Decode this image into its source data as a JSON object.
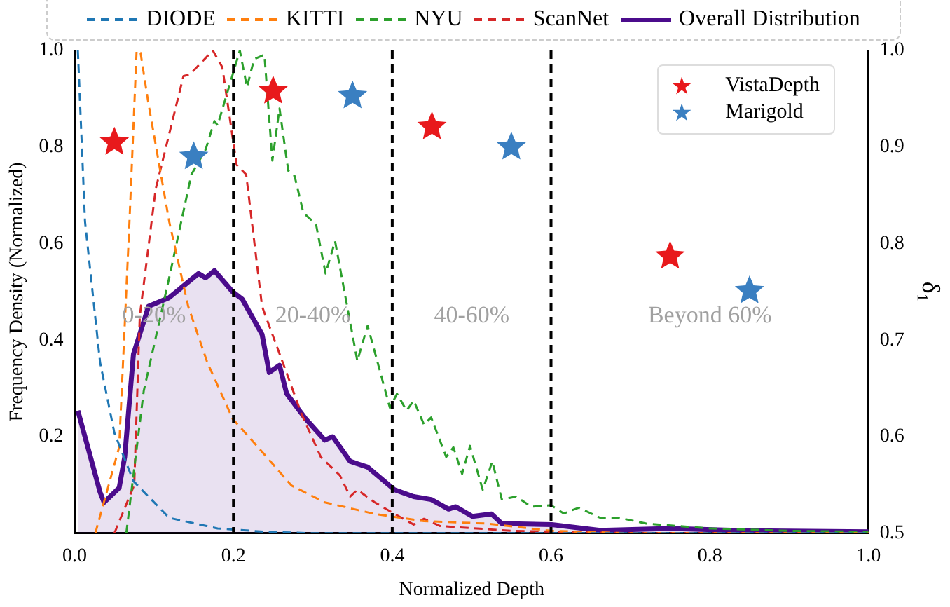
{
  "chart_data": {
    "type": "line",
    "xlabel": "Normalized Depth",
    "ylabel": "Frequency Density (Normalized)",
    "y2label": "δ₁",
    "xlim": [
      0,
      1
    ],
    "xticks": [
      {
        "value": 0,
        "label": "0.0"
      },
      {
        "value": 0.2,
        "label": "0.2"
      },
      {
        "value": 0.4,
        "label": "0.4"
      },
      {
        "value": 0.6,
        "label": "0.6"
      },
      {
        "value": 0.8,
        "label": "0.8"
      },
      {
        "value": 1,
        "label": "1.0"
      }
    ],
    "ylim": [
      0,
      1
    ],
    "yticks": [
      {
        "value": 0.2,
        "label": "0.2"
      },
      {
        "value": 0.4,
        "label": "0.4"
      },
      {
        "value": 0.6,
        "label": "0.6"
      },
      {
        "value": 0.8,
        "label": "0.8"
      },
      {
        "value": 1,
        "label": "1.0"
      }
    ],
    "y2lim": [
      0.5,
      1
    ],
    "y2ticks": [
      {
        "value": 0.5,
        "label": "0.5"
      },
      {
        "value": 0.6,
        "label": "0.6"
      },
      {
        "value": 0.7,
        "label": "0.7"
      },
      {
        "value": 0.8,
        "label": "0.8"
      },
      {
        "value": 0.9,
        "label": "0.9"
      },
      {
        "value": 1,
        "label": "1.0"
      }
    ],
    "legend": "top",
    "grid": false,
    "ref_lines": [
      {
        "axis": "x",
        "value": 0.2,
        "color": "#000000",
        "line_style": "dashed"
      },
      {
        "axis": "x",
        "value": 0.4,
        "color": "#000000",
        "line_style": "dashed"
      },
      {
        "axis": "x",
        "value": 0.6,
        "color": "#000000",
        "line_style": "dashed"
      }
    ],
    "annotations": [
      "0-20%",
      "20-40%",
      "40-60%",
      "Beyond 60%"
    ],
    "series": [
      {
        "name": "DIODE",
        "type": "line",
        "line_style": "dashed",
        "color": "#1f77b4",
        "x": [
          0.004,
          0.013,
          0.032,
          0.05,
          0.074,
          0.119,
          0.18,
          0.24,
          0.3,
          0.4,
          0.6,
          0.8,
          1.0
        ],
        "values": [
          1.0,
          0.646,
          0.354,
          0.208,
          0.108,
          0.032,
          0.01,
          0.003,
          0,
          0,
          0,
          0,
          0
        ]
      },
      {
        "name": "KITTI",
        "type": "line",
        "line_style": "dashed",
        "color": "#ff7f0e",
        "x": [
          0.026,
          0.056,
          0.069,
          0.078,
          0.083,
          0.093,
          0.119,
          0.143,
          0.167,
          0.199,
          0.23,
          0.273,
          0.315,
          0.378,
          0.44,
          0.52,
          0.6,
          0.7,
          0.85,
          1.0
        ],
        "values": [
          0,
          0.178,
          0.646,
          1.0,
          0.995,
          0.889,
          0.646,
          0.47,
          0.354,
          0.237,
          0.18,
          0.099,
          0.064,
          0.04,
          0.025,
          0.02,
          0.005,
          0,
          0,
          0
        ]
      },
      {
        "name": "NYU",
        "type": "line",
        "line_style": "dashed",
        "color": "#2ca02c",
        "x": [
          0.065,
          0.087,
          0.119,
          0.147,
          0.165,
          0.176,
          0.18,
          0.208,
          0.217,
          0.226,
          0.239,
          0.249,
          0.258,
          0.269,
          0.277,
          0.288,
          0.304,
          0.316,
          0.328,
          0.356,
          0.369,
          0.397,
          0.406,
          0.418,
          0.427,
          0.44,
          0.449,
          0.468,
          0.477,
          0.488,
          0.498,
          0.514,
          0.526,
          0.538,
          0.556,
          0.575,
          0.6,
          0.616,
          0.635,
          0.662,
          0.686,
          0.72,
          0.8,
          0.9,
          1.0
        ],
        "values": [
          0,
          0.295,
          0.529,
          0.743,
          0.795,
          0.854,
          0.845,
          1.0,
          0.924,
          0.982,
          0.991,
          0.772,
          0.88,
          0.751,
          0.74,
          0.664,
          0.64,
          0.538,
          0.605,
          0.357,
          0.43,
          0.26,
          0.289,
          0.254,
          0.275,
          0.225,
          0.24,
          0.158,
          0.178,
          0.123,
          0.181,
          0.09,
          0.149,
          0.07,
          0.076,
          0.055,
          0.058,
          0.041,
          0.053,
          0.032,
          0.032,
          0.02,
          0.01,
          0.005,
          0.003
        ]
      },
      {
        "name": "ScanNet",
        "type": "line",
        "line_style": "dashed",
        "color": "#d62728",
        "x": [
          0.05,
          0.075,
          0.082,
          0.102,
          0.137,
          0.145,
          0.174,
          0.186,
          0.204,
          0.216,
          0.236,
          0.26,
          0.286,
          0.31,
          0.334,
          0.347,
          0.356,
          0.378,
          0.403,
          0.427,
          0.44,
          0.46,
          0.55,
          0.7,
          1.0
        ],
        "values": [
          0,
          0.1,
          0.45,
          0.713,
          0.947,
          0.95,
          1.0,
          0.965,
          0.763,
          0.743,
          0.47,
          0.363,
          0.246,
          0.158,
          0.12,
          0.076,
          0.09,
          0.064,
          0.04,
          0.018,
          0.03,
          0.015,
          0.005,
          0,
          0
        ]
      },
      {
        "name": "Overall Distribution",
        "type": "area",
        "line_style": "solid",
        "color": "#4b0c8c",
        "x": [
          0.004,
          0.032,
          0.037,
          0.056,
          0.063,
          0.074,
          0.093,
          0.119,
          0.156,
          0.165,
          0.176,
          0.199,
          0.211,
          0.236,
          0.245,
          0.258,
          0.267,
          0.291,
          0.315,
          0.325,
          0.347,
          0.369,
          0.403,
          0.427,
          0.449,
          0.471,
          0.48,
          0.501,
          0.525,
          0.538,
          0.601,
          0.662,
          0.75,
          0.85,
          1.0
        ],
        "values": [
          0.254,
          0.085,
          0.064,
          0.094,
          0.158,
          0.371,
          0.47,
          0.488,
          0.538,
          0.529,
          0.544,
          0.5,
          0.485,
          0.412,
          0.333,
          0.348,
          0.289,
          0.237,
          0.193,
          0.2,
          0.149,
          0.137,
          0.09,
          0.076,
          0.07,
          0.05,
          0.055,
          0.035,
          0.04,
          0.02,
          0.018,
          0.006,
          0.01,
          0.005,
          0.003
        ]
      },
      {
        "name": "VistaDepth",
        "type": "scatter",
        "axis": "y2",
        "marker": "star",
        "color": "#e8191c",
        "x": [
          0.05,
          0.25,
          0.45,
          0.75
        ],
        "values": [
          0.905,
          0.958,
          0.921,
          0.787
        ]
      },
      {
        "name": "Marigold",
        "type": "scatter",
        "axis": "y2",
        "marker": "star",
        "color": "#3a7fc1",
        "x": [
          0.15,
          0.35,
          0.55,
          0.85
        ],
        "values": [
          0.89,
          0.953,
          0.9,
          0.751
        ]
      }
    ]
  }
}
